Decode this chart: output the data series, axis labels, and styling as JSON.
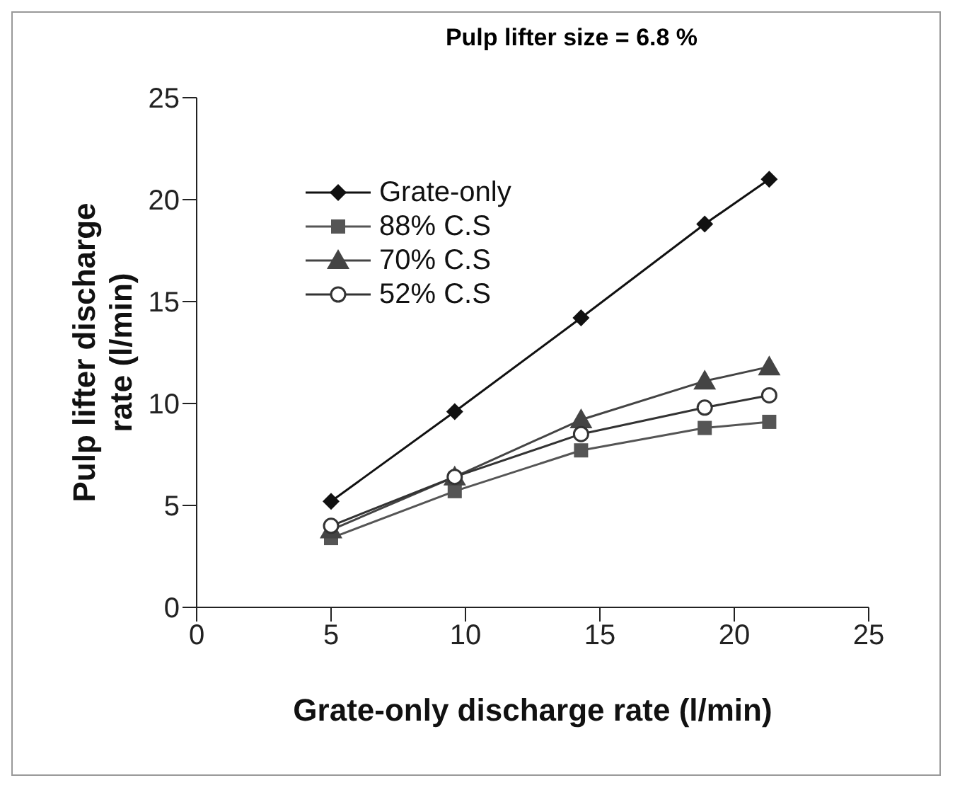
{
  "chart_data": {
    "type": "line",
    "title": "Pulp lifter size = 6.8 %",
    "xlabel": "Grate-only discharge rate (l/min)",
    "ylabel": "Pulp lifter discharge rate (l/min)",
    "xlim": [
      0,
      25
    ],
    "xticks": [
      0,
      5,
      10,
      15,
      20,
      25
    ],
    "ylim": [
      0,
      25
    ],
    "yticks": [
      0,
      5,
      10,
      15,
      20,
      25
    ],
    "grid": false,
    "legend": "top left",
    "line_style": "solid",
    "x": [
      5.0,
      9.6,
      14.3,
      18.9,
      21.3
    ],
    "series": [
      {
        "name": "Grate-only",
        "color": "#111111",
        "marker": "diamond",
        "values": [
          5.2,
          9.6,
          14.2,
          18.8,
          21.0
        ]
      },
      {
        "name": "88% C.S",
        "color": "#555555",
        "marker": "square",
        "values": [
          3.4,
          5.7,
          7.7,
          8.8,
          9.1
        ]
      },
      {
        "name": "70% C.S",
        "color": "#444444",
        "marker": "triangle",
        "values": [
          3.8,
          6.4,
          9.2,
          11.1,
          11.8
        ]
      },
      {
        "name": "52% C.S",
        "color": "#333333",
        "marker": "circle",
        "values": [
          4.0,
          6.4,
          8.5,
          9.8,
          10.4
        ]
      }
    ]
  }
}
